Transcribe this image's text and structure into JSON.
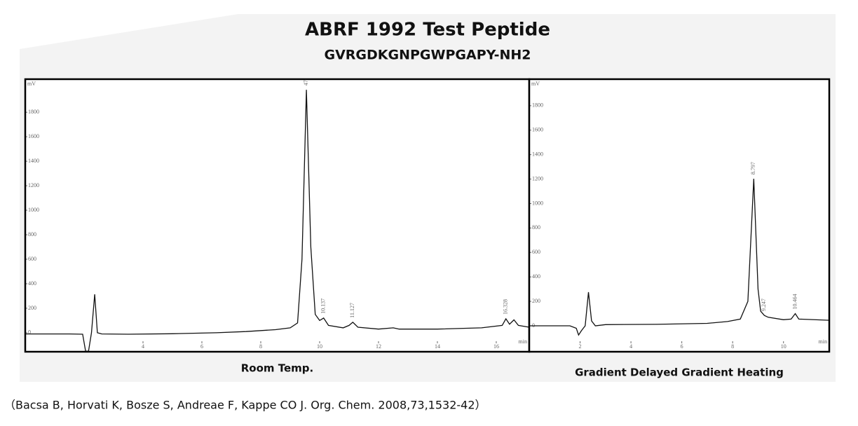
{
  "title": "ABRF 1992 Test Peptide",
  "subtitle": "GVRGDKGNPGWPGAPY-NH2",
  "citation": "（Bacsa B, Horvati K, Bosze S, Andreae F, Kappe CO J. Org. Chem. 2008,73,1532-42）",
  "chart_data": [
    {
      "type": "line",
      "title": "Room Temp.",
      "y_label": "mV",
      "x_label": "min",
      "color": "#111111",
      "x": [
        0,
        1.5,
        1.95,
        2.05,
        2.15,
        2.25,
        2.36,
        2.45,
        2.6,
        3.5,
        5,
        6.5,
        7.5,
        8.5,
        9.0,
        9.25,
        9.4,
        9.55,
        9.7,
        9.85,
        10.0,
        10.137,
        10.3,
        10.8,
        11.0,
        11.127,
        11.3,
        12,
        12.5,
        12.7,
        14,
        15.5,
        16.2,
        16.328,
        16.45,
        16.6,
        16.75,
        17.1
      ],
      "values": [
        -10,
        -10,
        -12,
        -150,
        -150,
        0,
        314,
        0,
        -10,
        -12,
        -8,
        0,
        10,
        25,
        40,
        80,
        600,
        1983,
        700,
        150,
        100,
        120,
        60,
        40,
        60,
        86,
        45,
        30,
        40,
        30,
        30,
        40,
        60,
        114,
        70,
        105,
        60,
        46
      ],
      "xlim": [
        0,
        17.12
      ],
      "ylim": [
        -155,
        2070
      ],
      "xticks": [
        4,
        6,
        8,
        10,
        12,
        14,
        16
      ],
      "yticks": [
        0,
        200,
        400,
        600,
        800,
        1000,
        1200,
        1400,
        1600,
        1800
      ],
      "annotations": [
        {
          "label": "47",
          "x": 9.55
        },
        {
          "label": "10.137",
          "x": 10.137
        },
        {
          "label": "11.127",
          "x": 11.127
        },
        {
          "label": "16.328",
          "x": 16.328
        }
      ]
    },
    {
      "type": "line",
      "title": "Gradient Delayed Gradient Heating",
      "y_label": "mV",
      "x_label": "min",
      "color": "#111111",
      "x": [
        0,
        1.6,
        1.85,
        1.94,
        2.05,
        2.2,
        2.33,
        2.45,
        2.6,
        3,
        5,
        7,
        7.8,
        8.3,
        8.6,
        8.83,
        9.0,
        9.1,
        9.247,
        9.4,
        10.0,
        10.3,
        10.464,
        10.6,
        11.8
      ],
      "values": [
        0,
        0,
        -20,
        -75,
        -40,
        0,
        275,
        40,
        0,
        10,
        12,
        20,
        35,
        55,
        200,
        1203,
        300,
        120,
        85,
        70,
        50,
        55,
        100,
        55,
        45
      ],
      "xlim": [
        0,
        11.8
      ],
      "ylim": [
        -212,
        2017
      ],
      "xticks": [
        2,
        4,
        6,
        8,
        10
      ],
      "yticks": [
        0,
        200,
        400,
        600,
        800,
        1000,
        1200,
        1400,
        1600,
        1800
      ],
      "annotations": [
        {
          "label": "8.797",
          "x": 8.83
        },
        {
          "label": "9.247",
          "x": 9.247
        },
        {
          "label": "10.464",
          "x": 10.464
        }
      ]
    }
  ]
}
